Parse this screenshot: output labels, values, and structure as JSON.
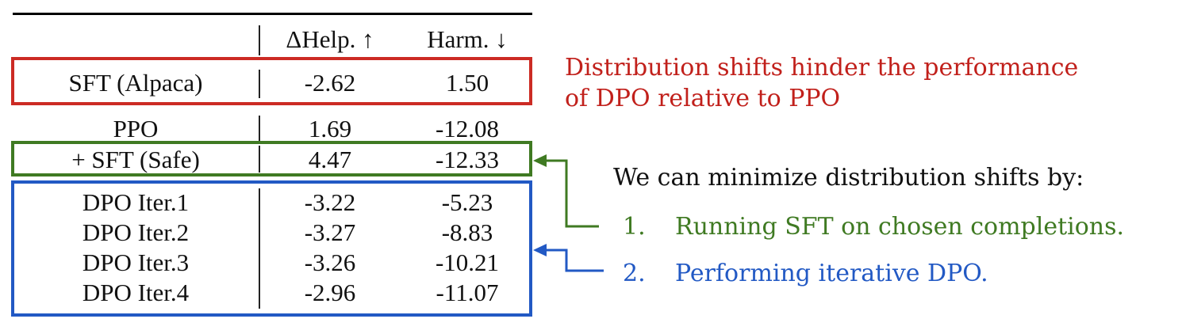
{
  "table": {
    "header": {
      "method": "",
      "help": "ΔHelp. ↑",
      "harm": "Harm. ↓"
    },
    "rows": [
      {
        "method": "SFT (Alpaca)",
        "help": "-2.62",
        "harm": "1.50"
      },
      {
        "method": "PPO",
        "help": "1.69",
        "harm": "-12.08"
      },
      {
        "method": "+ SFT (Safe)",
        "help": "4.47",
        "harm": "-12.33"
      },
      {
        "method": "DPO Iter.1",
        "help": "-3.22",
        "harm": "-5.23"
      },
      {
        "method": "DPO Iter.2",
        "help": "-3.27",
        "harm": "-8.83"
      },
      {
        "method": "DPO Iter.3",
        "help": "-3.26",
        "harm": "-10.21"
      },
      {
        "method": "DPO Iter.4",
        "help": "-2.96",
        "harm": "-11.07"
      }
    ]
  },
  "notes": {
    "red_line1": "Distribution shifts hinder the performance",
    "red_line2": "of DPO relative to PPO",
    "intro": "We can minimize distribution shifts by:",
    "item1_num": "1.",
    "item1_text": "Running SFT on chosen completions.",
    "item2_num": "2.",
    "item2_text": "Performing iterative DPO."
  },
  "colors": {
    "red": "#cc2b24",
    "green": "#3f7a22",
    "blue": "#2259c4",
    "text": "#111111"
  }
}
